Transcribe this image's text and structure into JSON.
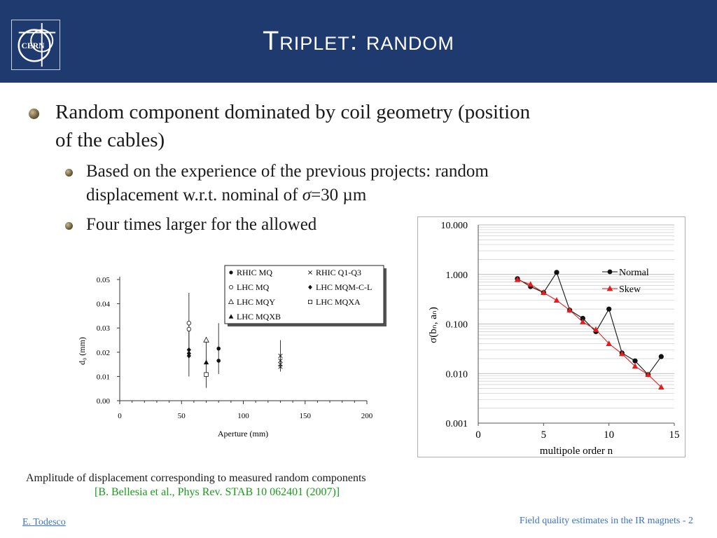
{
  "header": {
    "title": "Triplet: random",
    "logo_text": "CERN",
    "background": "#1f3a6e"
  },
  "bullets": {
    "main_line1": "Random component dominated by coil geometry (position",
    "main_line2": "of the cables)",
    "sub1_line1": "Based on the experience of the previous projects: random",
    "sub1_line2_prefix": "displacement w.r.t. nominal of ",
    "sub1_sigma": "σ",
    "sub1_line2_suffix": "=30 µm",
    "sub2": "Four times larger for the allowed"
  },
  "left_chart": {
    "xlabel": "Aperture (mm)",
    "ylabel": "d₀ (mm)",
    "legend": [
      "RHIC MQ",
      "RHIC Q1-Q3",
      "LHC MQ",
      "LHC MQM-C-L",
      "LHC MQY",
      "LHC MQXA",
      "LHC MQXB"
    ]
  },
  "right_chart": {
    "ylabel": "σ(bₙ, aₙ)",
    "xlabel": "multipole order n",
    "legend": [
      "Normal",
      "Skew"
    ]
  },
  "chart_data": [
    {
      "type": "scatter",
      "xlabel": "Aperture (mm)",
      "ylabel": "d0 (mm)",
      "xlim": [
        0,
        200
      ],
      "ylim": [
        0,
        0.05
      ],
      "xticks": [
        "0",
        "50",
        "100",
        "150",
        "200"
      ],
      "yticks": [
        "0.00",
        "0.01",
        "0.02",
        "0.03",
        "0.04",
        "0.05"
      ],
      "series": [
        {
          "name": "RHIC MQ",
          "marker": "dot",
          "points": [
            [
              80,
              0.0215
            ],
            [
              80,
              0.0165
            ]
          ],
          "err": [
            0.0105,
            0
          ]
        },
        {
          "name": "RHIC Q1-Q3",
          "marker": "cross",
          "points": [
            [
              130,
              0.0185
            ],
            [
              130,
              0.0165
            ],
            [
              130,
              0.015
            ],
            [
              130,
              0.014
            ]
          ],
          "err": [
            0.0065,
            0,
            0,
            0
          ]
        },
        {
          "name": "LHC MQ",
          "marker": "circle",
          "points": [
            [
              56,
              0.032
            ],
            [
              56,
              0.0295
            ]
          ],
          "err": [
            0.0125,
            0
          ]
        },
        {
          "name": "LHC MQM-C-L",
          "marker": "diamond",
          "points": [
            [
              56,
              0.021
            ],
            [
              56,
              0.0195
            ],
            [
              56,
              0.0185
            ]
          ],
          "err": [
            0.011,
            0,
            0
          ]
        },
        {
          "name": "LHC MQY",
          "marker": "triangle-open",
          "points": [
            [
              70,
              0.025
            ]
          ],
          "err": [
            0
          ]
        },
        {
          "name": "LHC MQXA",
          "marker": "square-open",
          "points": [
            [
              70,
              0.0108
            ]
          ],
          "err": [
            0
          ]
        },
        {
          "name": "LHC MQXB",
          "marker": "triangle",
          "points": [
            [
              70,
              0.0158
            ]
          ],
          "err": [
            0.0105
          ]
        }
      ]
    },
    {
      "type": "line",
      "xlabel": "multipole order n",
      "ylabel": "σ(bn, an)",
      "xlim": [
        0,
        15
      ],
      "ylim": [
        0.001,
        10
      ],
      "yscale": "log",
      "grid": true,
      "legend_position": "top-right",
      "xticks": [
        "0",
        "5",
        "10",
        "15"
      ],
      "yticks": [
        "0.001",
        "0.010",
        "0.100",
        "1.000",
        "10.000"
      ],
      "x": [
        3,
        4,
        5,
        6,
        7,
        8,
        9,
        10,
        11,
        12,
        13,
        14
      ],
      "series": [
        {
          "name": "Normal",
          "color": "#111111",
          "values": [
            0.82,
            0.57,
            0.43,
            1.1,
            0.19,
            0.13,
            0.07,
            0.2,
            0.026,
            0.018,
            0.0095,
            0.022
          ]
        },
        {
          "name": "Skew",
          "color": "#e02020",
          "values": [
            0.78,
            0.63,
            0.43,
            0.3,
            0.19,
            0.11,
            0.077,
            0.04,
            0.025,
            0.014,
            0.0095,
            0.0053
          ]
        }
      ]
    }
  ],
  "caption": {
    "line1": "Amplitude of displacement corresponding to measured random components",
    "reference": "[B. Bellesia et al., Phys Rev. STAB  10 062401 (2007)]"
  },
  "footer": {
    "author": "E. Todesco",
    "slide_info": "Field quality estimates in the IR magnets - 2"
  }
}
